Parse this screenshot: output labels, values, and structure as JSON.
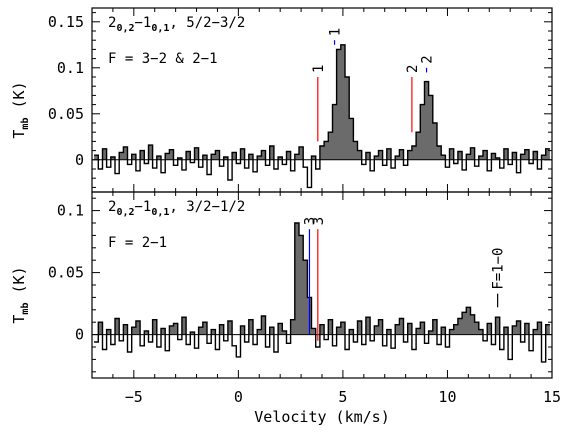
{
  "chart_data": [
    {
      "type": "area",
      "panel": "top",
      "x": [
        -6.8,
        -6.6,
        -6.4,
        -6.2,
        -6.0,
        -5.8,
        -5.6,
        -5.4,
        -5.2,
        -5.0,
        -4.8,
        -4.6,
        -4.4,
        -4.2,
        -4.0,
        -3.8,
        -3.6,
        -3.4,
        -3.2,
        -3.0,
        -2.8,
        -2.6,
        -2.4,
        -2.2,
        -2.0,
        -1.8,
        -1.6,
        -1.4,
        -1.2,
        -1.0,
        -0.8,
        -0.6,
        -0.4,
        -0.2,
        0.0,
        0.2,
        0.4,
        0.6,
        0.8,
        1.0,
        1.2,
        1.4,
        1.6,
        1.8,
        2.0,
        2.2,
        2.4,
        2.6,
        2.8,
        3.0,
        3.2,
        3.4,
        3.6,
        3.8,
        4.0,
        4.2,
        4.4,
        4.6,
        4.8,
        5.0,
        5.2,
        5.4,
        5.6,
        5.8,
        6.0,
        6.2,
        6.4,
        6.6,
        6.8,
        7.0,
        7.2,
        7.4,
        7.6,
        7.8,
        8.0,
        8.2,
        8.4,
        8.6,
        8.8,
        9.0,
        9.2,
        9.4,
        9.6,
        9.8,
        10.0,
        10.2,
        10.4,
        10.6,
        10.8,
        11.0,
        11.2,
        11.4,
        11.6,
        11.8,
        12.0,
        12.2,
        12.4,
        12.6,
        12.8,
        13.0,
        13.2,
        13.4,
        13.6,
        13.8,
        14.0,
        14.2,
        14.4,
        14.6,
        14.8
      ],
      "values": [
        0.005,
        -0.01,
        0.012,
        -0.008,
        0.003,
        -0.015,
        0.008,
        0.014,
        -0.005,
        0.006,
        -0.012,
        0.01,
        -0.004,
        0.016,
        -0.009,
        0.004,
        -0.014,
        0.007,
        0.011,
        -0.006,
        0.002,
        -0.011,
        0.009,
        -0.003,
        0.013,
        -0.008,
        0.005,
        -0.016,
        0.006,
        0.01,
        -0.007,
        0.003,
        -0.022,
        0.008,
        -0.004,
        0.012,
        -0.009,
        0.006,
        -0.013,
        0.004,
        0.01,
        -0.006,
        0.015,
        -0.01,
        0.003,
        -0.005,
        0.009,
        -0.012,
        0.006,
        0.014,
        -0.008,
        -0.03,
        0.004,
        -0.01,
        0.015,
        0.02,
        0.03,
        0.06,
        0.12,
        0.125,
        0.09,
        0.045,
        0.02,
        0.01,
        -0.005,
        0.008,
        -0.012,
        0.004,
        0.01,
        -0.006,
        0.012,
        -0.009,
        0.004,
        0.011,
        -0.006,
        0.01,
        0.015,
        0.03,
        0.06,
        0.085,
        0.07,
        0.04,
        0.015,
        0.005,
        -0.008,
        0.012,
        -0.004,
        0.009,
        -0.011,
        0.006,
        0.013,
        -0.007,
        0.004,
        0.01,
        -0.012,
        0.007,
        0.002,
        -0.009,
        0.012,
        -0.005,
        0.008,
        -0.014,
        0.006,
        0.011,
        -0.004,
        0.009,
        -0.01,
        0.005,
        0.012
      ],
      "xlim": [
        -7,
        15
      ],
      "ylim": [
        -0.035,
        0.165
      ],
      "yticks": [
        0,
        0.05,
        0.1,
        0.15
      ],
      "ytick_labels": [
        "0",
        "0.05",
        "0.1",
        "0.15"
      ],
      "ylabel": {
        "main": "T",
        "sub": "mb",
        "unit": " (K)"
      },
      "annotation_lines": [
        {
          "pre": "2",
          "sub": "0,2",
          "mid": "−1",
          "sub2": "0,1",
          "post": ", 5/2−3/2"
        },
        {
          "text": "F = 3−2 & 2−1"
        }
      ],
      "markers": [
        {
          "x": 3.8,
          "y_bottom": 0.02,
          "y_top": 0.09,
          "label": "1",
          "color": "#ff0000"
        },
        {
          "x": 4.6,
          "y_bottom": 0.125,
          "y_top": 0.13,
          "label": "1",
          "color": "#0000ff"
        },
        {
          "x": 8.3,
          "y_bottom": 0.03,
          "y_top": 0.09,
          "label": "2",
          "color": "#ff0000"
        },
        {
          "x": 9.0,
          "y_bottom": 0.095,
          "y_top": 0.1,
          "label": "2",
          "color": "#0000ff"
        }
      ]
    },
    {
      "type": "area",
      "panel": "bottom",
      "x": [
        -6.8,
        -6.6,
        -6.4,
        -6.2,
        -6.0,
        -5.8,
        -5.6,
        -5.4,
        -5.2,
        -5.0,
        -4.8,
        -4.6,
        -4.4,
        -4.2,
        -4.0,
        -3.8,
        -3.6,
        -3.4,
        -3.2,
        -3.0,
        -2.8,
        -2.6,
        -2.4,
        -2.2,
        -2.0,
        -1.8,
        -1.6,
        -1.4,
        -1.2,
        -1.0,
        -0.8,
        -0.6,
        -0.4,
        -0.2,
        0.0,
        0.2,
        0.4,
        0.6,
        0.8,
        1.0,
        1.2,
        1.4,
        1.6,
        1.8,
        2.0,
        2.2,
        2.4,
        2.6,
        2.8,
        3.0,
        3.2,
        3.4,
        3.6,
        3.8,
        4.0,
        4.2,
        4.4,
        4.6,
        4.8,
        5.0,
        5.2,
        5.4,
        5.6,
        5.8,
        6.0,
        6.2,
        6.4,
        6.6,
        6.8,
        7.0,
        7.2,
        7.4,
        7.6,
        7.8,
        8.0,
        8.2,
        8.4,
        8.6,
        8.8,
        9.0,
        9.2,
        9.4,
        9.6,
        9.8,
        10.0,
        10.2,
        10.4,
        10.6,
        10.8,
        11.0,
        11.2,
        11.4,
        11.6,
        11.8,
        12.0,
        12.2,
        12.4,
        12.6,
        12.8,
        13.0,
        13.2,
        13.4,
        13.6,
        13.8,
        14.0,
        14.2,
        14.4,
        14.6,
        14.8
      ],
      "values": [
        -0.006,
        0.01,
        -0.012,
        0.004,
        -0.008,
        0.013,
        -0.005,
        0.008,
        -0.014,
        0.006,
        0.011,
        -0.009,
        0.003,
        -0.006,
        0.012,
        -0.01,
        0.005,
        -0.013,
        0.007,
        0.009,
        -0.004,
        0.014,
        -0.008,
        0.002,
        -0.011,
        0.006,
        0.01,
        -0.007,
        0.004,
        -0.012,
        0.008,
        -0.005,
        0.011,
        -0.009,
        -0.018,
        0.007,
        -0.006,
        0.012,
        -0.008,
        0.004,
        0.015,
        -0.01,
        0.006,
        -0.014,
        0.009,
        0.003,
        -0.007,
        0.012,
        0.09,
        0.08,
        0.06,
        0.03,
        0.005,
        -0.01,
        0.008,
        -0.004,
        0.012,
        -0.009,
        0.006,
        0.01,
        -0.012,
        0.004,
        -0.006,
        0.011,
        -0.008,
        0.014,
        -0.005,
        0.007,
        0.012,
        -0.009,
        0.004,
        -0.011,
        0.008,
        0.013,
        -0.006,
        0.009,
        -0.012,
        0.005,
        0.01,
        -0.007,
        0.003,
        0.012,
        -0.008,
        0.006,
        -0.01,
        0.004,
        0.008,
        0.013,
        0.018,
        0.022,
        0.016,
        0.01,
        0.004,
        -0.005,
        0.009,
        -0.008,
        0.014,
        -0.012,
        0.006,
        -0.02,
        0.007,
        0.011,
        -0.006,
        0.009,
        -0.013,
        0.004,
        0.01,
        -0.022,
        0.008
      ],
      "xlim": [
        -7,
        15
      ],
      "ylim": [
        -0.035,
        0.115
      ],
      "yticks": [
        0,
        0.05,
        0.1
      ],
      "ytick_labels": [
        "0",
        "0.05",
        "0.1"
      ],
      "ylabel": {
        "main": "T",
        "sub": "mb",
        "unit": " (K)"
      },
      "xticks": [
        -5,
        0,
        5,
        10,
        15
      ],
      "xtick_labels": [
        "−5",
        "0",
        "5",
        "10",
        "15"
      ],
      "xlabel": "Velocity (km/s)",
      "annotation_lines": [
        {
          "pre": "2",
          "sub": "0,2",
          "mid": "−1",
          "sub2": "0,1",
          "post": ", 3/2−1/2"
        },
        {
          "text": "F = 2−1"
        }
      ],
      "markers": [
        {
          "x": 3.4,
          "y_bottom": 0.0,
          "y_top": 0.085,
          "label": "3",
          "color": "#0000ff"
        },
        {
          "x": 3.8,
          "y_bottom": -0.005,
          "y_top": 0.085,
          "label": "3",
          "color": "#ff0000"
        },
        {
          "x": 12.4,
          "y_bottom": 0.022,
          "y_top": 0.033,
          "label": "F=1−0",
          "color": "#000000"
        }
      ]
    }
  ]
}
